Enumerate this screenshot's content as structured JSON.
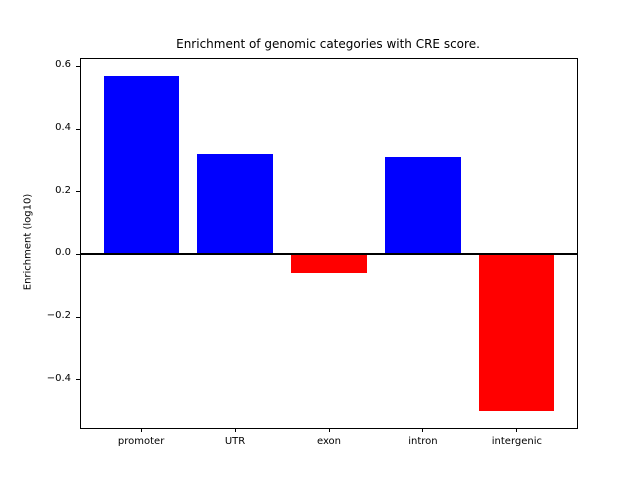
{
  "chart_data": {
    "type": "bar",
    "title": "Enrichment of genomic categories with CRE score.",
    "xlabel": "",
    "ylabel": "Enrichment (log10)",
    "categories": [
      "promoter",
      "UTR",
      "exon",
      "intron",
      "intergenic"
    ],
    "values": [
      0.57,
      0.32,
      -0.06,
      0.31,
      -0.5
    ],
    "bar_colors": [
      "#0000ff",
      "#0000ff",
      "#ff0000",
      "#0000ff",
      "#ff0000"
    ],
    "positive_color": "#0000ff",
    "negative_color": "#ff0000",
    "bar_width_fraction": 0.8,
    "xlim": [
      -0.64,
      4.64
    ],
    "ylim": [
      -0.5535,
      0.6235
    ],
    "yticks": [
      -0.4,
      -0.2,
      0.0,
      0.2,
      0.4,
      0.6
    ],
    "ytick_labels": [
      "−0.4",
      "−0.2",
      "0.0",
      "0.2",
      "0.4",
      "0.6"
    ],
    "grid": false,
    "zero_line": true,
    "legend": null
  }
}
